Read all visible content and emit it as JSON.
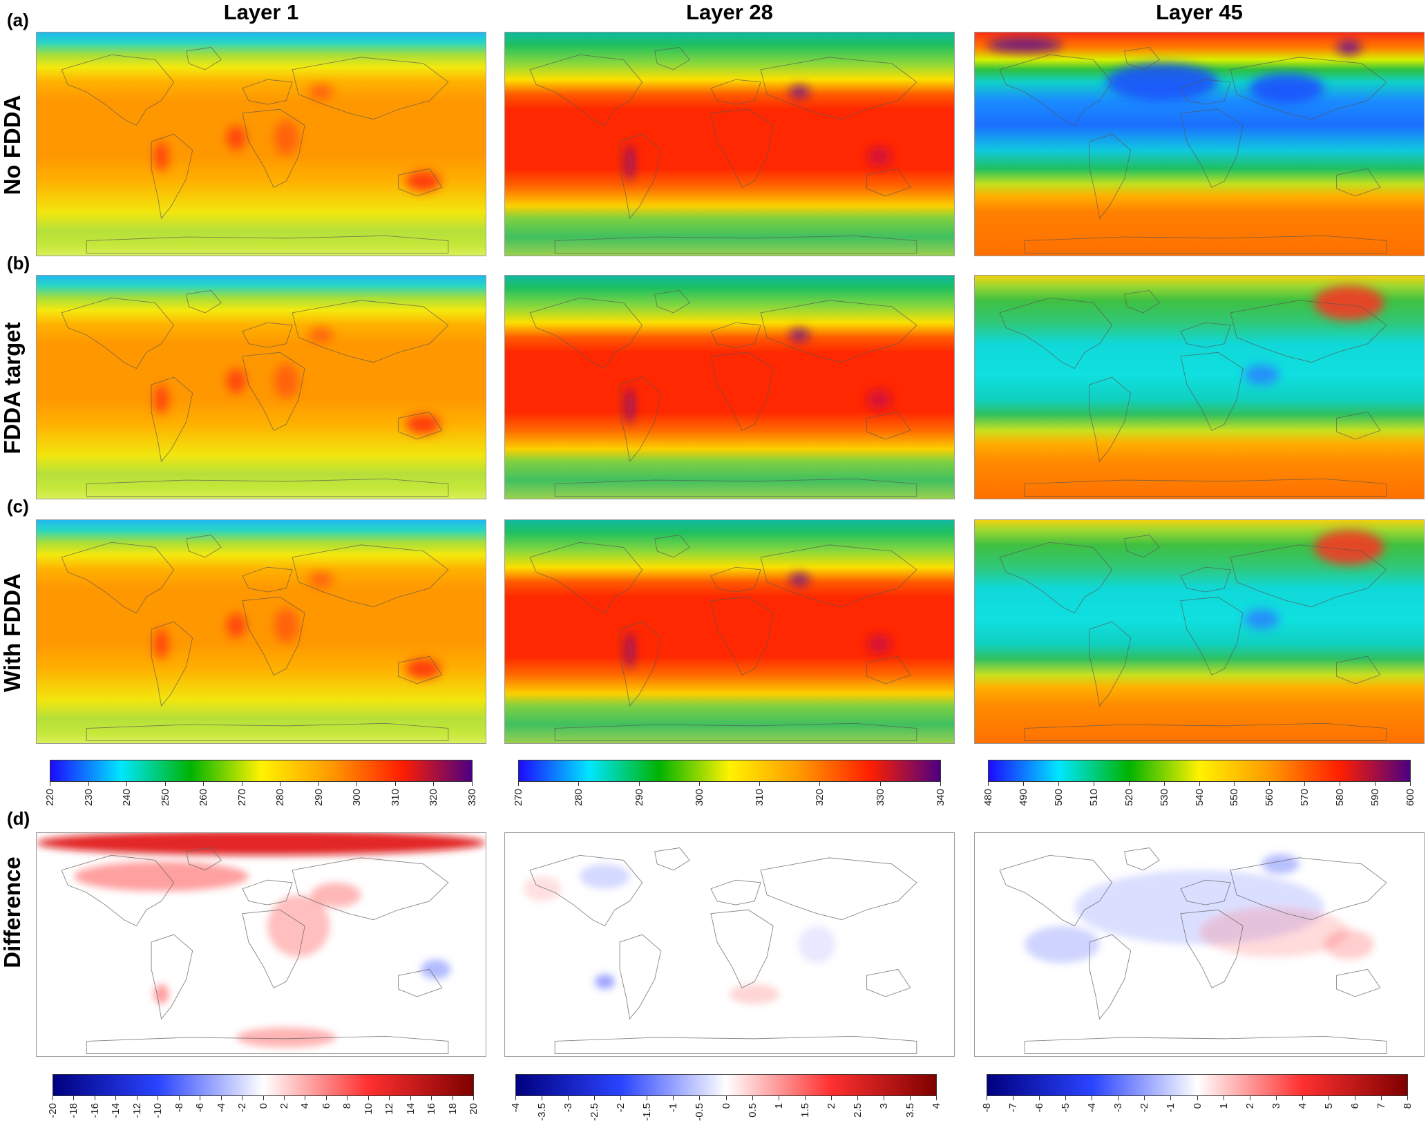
{
  "columns": [
    {
      "title": "Layer 1"
    },
    {
      "title": "Layer 28"
    },
    {
      "title": "Layer 45"
    }
  ],
  "rows": [
    {
      "letter": "(a)",
      "label": "No FDDA"
    },
    {
      "letter": "(b)",
      "label": "FDDA  target"
    },
    {
      "letter": "(c)",
      "label": "With FDDA"
    },
    {
      "letter": "(d)",
      "label": "Difference"
    }
  ],
  "colorbars": {
    "main": [
      {
        "ticks": [
          "220",
          "230",
          "240",
          "250",
          "260",
          "270",
          "280",
          "290",
          "300",
          "310",
          "320",
          "330"
        ]
      },
      {
        "ticks": [
          "270",
          "280",
          "290",
          "300",
          "310",
          "320",
          "330",
          "340"
        ]
      },
      {
        "ticks": [
          "480",
          "490",
          "500",
          "510",
          "520",
          "530",
          "540",
          "550",
          "560",
          "570",
          "580",
          "590",
          "600"
        ]
      }
    ],
    "diff": [
      {
        "ticks": [
          "-20",
          "-18",
          "-16",
          "-14",
          "-12",
          "-10",
          "-8",
          "-6",
          "-4",
          "-2",
          "0",
          "2",
          "4",
          "6",
          "8",
          "10",
          "12",
          "14",
          "16",
          "18",
          "20"
        ]
      },
      {
        "ticks": [
          "-4",
          "-3.5",
          "-3",
          "-2.5",
          "-2",
          "-1.5",
          "-1",
          "-0.5",
          "0",
          "0.5",
          "1",
          "1.5",
          "2",
          "2.5",
          "3",
          "3.5",
          "4"
        ]
      },
      {
        "ticks": [
          "-8",
          "-7",
          "-6",
          "-5",
          "-4",
          "-3",
          "-2",
          "-1",
          "0",
          "1",
          "2",
          "3",
          "4",
          "5",
          "6",
          "7",
          "8"
        ]
      }
    ]
  },
  "colors": {
    "rainbow": [
      "#1c0aff",
      "#00e6ff",
      "#00b300",
      "#fff200",
      "#ff9900",
      "#ff1f00",
      "#4b0082"
    ],
    "diverging": [
      "#00007f",
      "#2a44ff",
      "#ffffff",
      "#ff3030",
      "#7f0000"
    ]
  }
}
